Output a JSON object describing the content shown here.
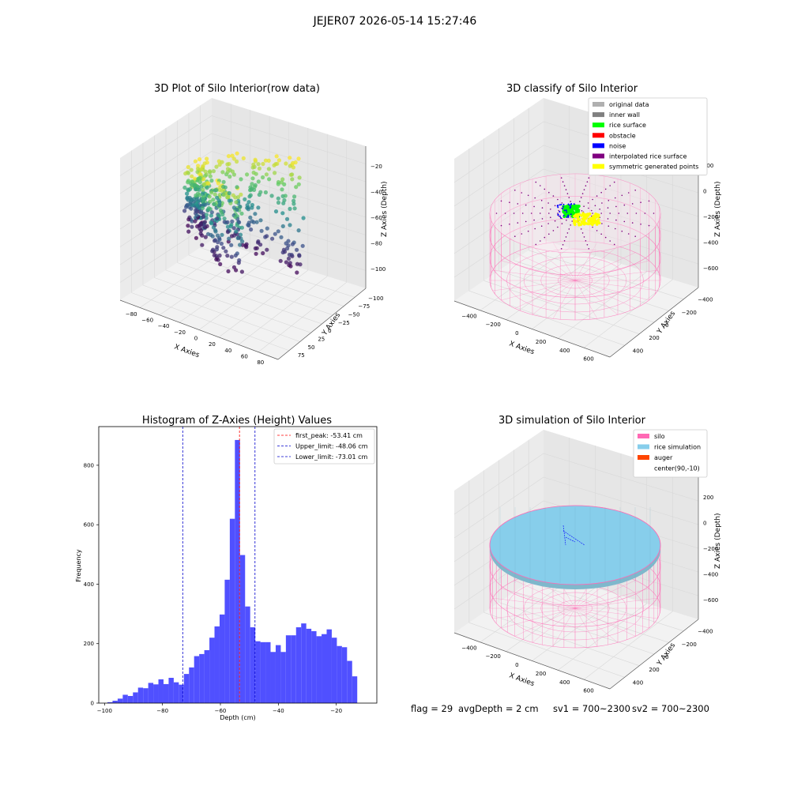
{
  "figure": {
    "suptitle": "JEJER07 2026-05-14 15:27:46"
  },
  "status": {
    "flag": "flag = 29",
    "avg_depth": "avgDepth = 2 cm",
    "sv1": "sv1 = 700~2300",
    "sv2": "sv2 = 700~2300"
  },
  "colors": {
    "histogram_bar": "#5050ff",
    "first_peak_line": "#ff0000",
    "limit_lines": "#0000cc",
    "silo_wire": "#ff69b4",
    "rice_simulation": "#87ceeb",
    "auger": "#ff4500",
    "rice_surface": "#00ff00",
    "noise": "#0000ff",
    "symmetric": "#ffff00",
    "interpolated": "#800080"
  },
  "chart_data": [
    {
      "type": "scatter3d",
      "title": "3D Plot of Silo Interior(row data)",
      "xlabel": "X Axies",
      "ylabel": "Y Axies",
      "zlabel": "Z Axies (Depth)",
      "x_ticks": [
        "−80",
        "−60",
        "−40",
        "−20",
        "0",
        "20",
        "40",
        "60",
        "80"
      ],
      "y_ticks": [
        "75",
        "50",
        "25",
        "0",
        "−25",
        "−50",
        "−75",
        "−100"
      ],
      "z_ticks": [
        "−20",
        "−40",
        "−60",
        "−80",
        "−100"
      ],
      "xlim": [
        -85,
        85
      ],
      "ylim": [
        -100,
        85
      ],
      "zlim": [
        -105,
        -10
      ],
      "colormap": "viridis"
    },
    {
      "type": "scatter3d",
      "title": "3D classify of Silo Interior",
      "xlabel": "X Axies",
      "ylabel": "Y Axies",
      "zlabel": "Z Axies (Depth)",
      "x_ticks": [
        "−400",
        "−200",
        "0",
        "200",
        "400",
        "600"
      ],
      "y_ticks": [
        "400",
        "200",
        "0",
        "−200",
        "−400"
      ],
      "z_ticks": [
        "200",
        "0",
        "−200",
        "−400",
        "−600"
      ],
      "legend_position": "top-right",
      "legend": [
        {
          "label": "original data",
          "color": "#b0b0b0"
        },
        {
          "label": "inner wall",
          "color": "#808080"
        },
        {
          "label": "rice surface",
          "color": "#00ff00"
        },
        {
          "label": "obstacle",
          "color": "#ff0000"
        },
        {
          "label": "noise",
          "color": "#0000ff"
        },
        {
          "label": "interpolated rice surface",
          "color": "#800080"
        },
        {
          "label": "symmetric generated points",
          "color": "#ffff00"
        }
      ]
    },
    {
      "type": "bar",
      "title": "Histogram of Z-Axies (Height) Values",
      "xlabel": "Depth (cm)",
      "ylabel": "Frequency",
      "xlim": [
        -102,
        -6
      ],
      "ylim": [
        0,
        930
      ],
      "x_ticks": [
        {
          "value": -100,
          "label": "−100"
        },
        {
          "value": -80,
          "label": "−80"
        },
        {
          "value": -60,
          "label": "−60"
        },
        {
          "value": -40,
          "label": "−40"
        },
        {
          "value": -20,
          "label": "−20"
        }
      ],
      "y_ticks": [
        {
          "value": 0,
          "label": "0"
        },
        {
          "value": 200,
          "label": "200"
        },
        {
          "value": 400,
          "label": "400"
        },
        {
          "value": 600,
          "label": "600"
        },
        {
          "value": 800,
          "label": "800"
        }
      ],
      "bin_start": -99,
      "bin_width": 1.76,
      "values": [
        3,
        8,
        15,
        28,
        24,
        36,
        52,
        50,
        68,
        63,
        80,
        64,
        85,
        70,
        62,
        98,
        120,
        158,
        165,
        178,
        220,
        258,
        298,
        415,
        620,
        885,
        498,
        325,
        255,
        208,
        205,
        205,
        172,
        195,
        172,
        228,
        228,
        255,
        268,
        250,
        242,
        225,
        232,
        248,
        220,
        192,
        188,
        142,
        90
      ],
      "lines": [
        {
          "label": "first_peak: -53.41 cm",
          "value": -53.41,
          "color": "#ff0000"
        },
        {
          "label": "Upper_limit: -48.06 cm",
          "value": -48.06,
          "color": "#0000cc"
        },
        {
          "label": "Lower_limit: -73.01 cm",
          "value": -73.01,
          "color": "#0000cc"
        }
      ],
      "legend_position": "top-right"
    },
    {
      "type": "scatter3d",
      "title": "3D simulation of Silo Interior",
      "xlabel": "X Axies",
      "ylabel": "Y Axies",
      "zlabel": "Z Axies (Depth)",
      "x_ticks": [
        "−400",
        "−200",
        "0",
        "200",
        "400",
        "600"
      ],
      "y_ticks": [
        "400",
        "200",
        "0",
        "−200",
        "−400"
      ],
      "z_ticks": [
        "200",
        "0",
        "−200",
        "−400",
        "−600"
      ],
      "legend_position": "top-right",
      "legend": [
        {
          "label": "silo",
          "color": "#ff69b4"
        },
        {
          "label": "rice simulation",
          "color": "#87ceeb"
        },
        {
          "label": "auger",
          "color": "#ff4500"
        },
        {
          "label": "center(90,-10)",
          "color": "#ffffff"
        }
      ]
    }
  ]
}
